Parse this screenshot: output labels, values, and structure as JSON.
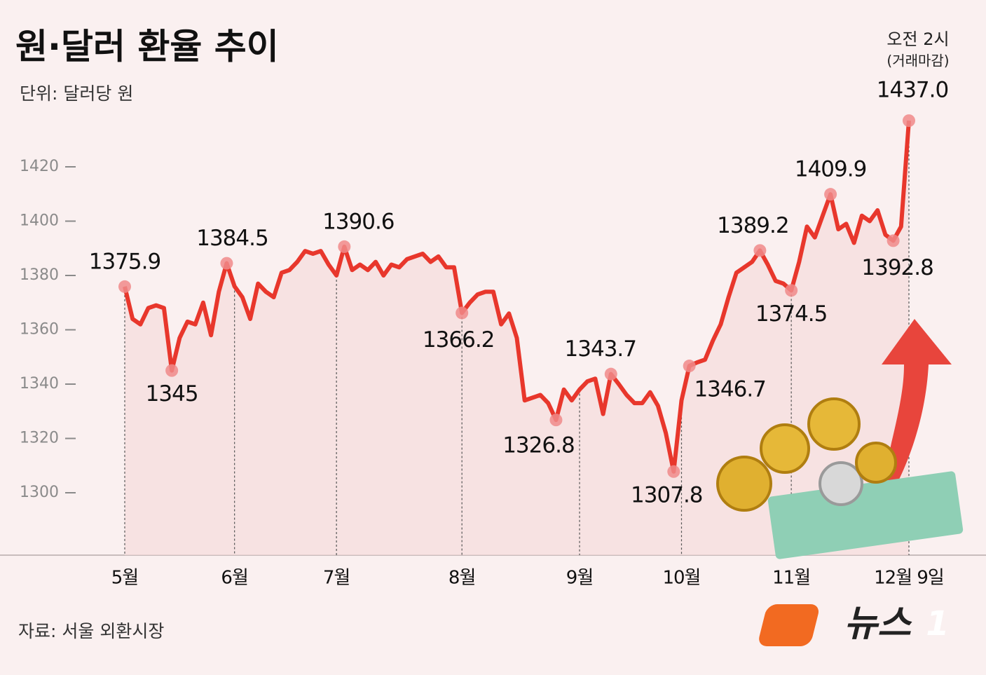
{
  "chart_data": {
    "type": "line",
    "title": "원·달러 환율 추이",
    "subtitle": "단위: 달러당 원",
    "source": "자료: 서울 외환시장",
    "logo": "뉴스",
    "logo_mark": "1",
    "annotations": [
      "오전 2시",
      "(거래마감)"
    ],
    "categories": [
      "5월",
      null,
      null,
      null,
      null,
      null,
      null,
      null,
      null,
      null,
      null,
      null,
      null,
      null,
      "6월",
      null,
      null,
      null,
      null,
      null,
      null,
      null,
      null,
      null,
      null,
      null,
      null,
      "7월",
      null,
      null,
      null,
      null,
      null,
      null,
      null,
      null,
      null,
      null,
      null,
      null,
      null,
      null,
      null,
      "8월",
      null,
      null,
      null,
      null,
      null,
      null,
      null,
      null,
      null,
      null,
      null,
      null,
      null,
      null,
      "9월",
      null,
      null,
      null,
      null,
      null,
      null,
      null,
      null,
      null,
      null,
      null,
      null,
      "10월",
      null,
      null,
      null,
      null,
      null,
      null,
      null,
      null,
      null,
      null,
      null,
      null,
      null,
      "11월",
      null,
      null,
      null,
      null,
      null,
      null,
      null,
      null,
      null,
      null,
      null,
      null,
      null,
      null,
      "12월 9일"
    ],
    "series": [
      {
        "color": "#e8372c",
        "values": [
          1375.9,
          1364,
          1362,
          1368,
          1369,
          1368,
          1345,
          1357,
          1363,
          1362,
          1370,
          1358,
          1374,
          1384.5,
          1376,
          1372,
          1364,
          1377,
          1374,
          1372,
          1381,
          1382,
          1385,
          1389,
          1388,
          1389,
          1384,
          1380,
          1390.6,
          1382,
          1384,
          1382,
          1385,
          1380,
          1384,
          1383,
          1386,
          1387,
          1388,
          1385,
          1387,
          1383,
          1383,
          1366.2,
          1370,
          1373,
          1374,
          1374,
          1362,
          1366,
          1357,
          1334,
          1335,
          1336,
          1333,
          1326.8,
          1338,
          1334,
          1338,
          1341,
          1342,
          1329,
          1343.7,
          1340,
          1336,
          1333,
          1333,
          1337,
          1332,
          1322,
          1307.8,
          1334,
          1346.7,
          1348,
          1349,
          1356,
          1362,
          1372,
          1381,
          1383,
          1385,
          1389.2,
          1384,
          1378,
          1377,
          1374.5,
          1385,
          1398,
          1394,
          1402,
          1409.9,
          1397,
          1399,
          1392,
          1402,
          1400,
          1404,
          1395,
          1392.8,
          1398,
          1437.0
        ],
        "value_labels": [
          "1375.9",
          null,
          null,
          null,
          null,
          null,
          "1345",
          null,
          null,
          null,
          null,
          null,
          null,
          "1384.5",
          null,
          null,
          null,
          null,
          null,
          null,
          null,
          null,
          null,
          null,
          null,
          null,
          null,
          null,
          "1390.6",
          null,
          null,
          null,
          null,
          null,
          null,
          null,
          null,
          null,
          null,
          null,
          null,
          null,
          null,
          "1366.2",
          null,
          null,
          null,
          null,
          null,
          null,
          null,
          null,
          null,
          null,
          null,
          "1326.8",
          null,
          null,
          null,
          null,
          null,
          null,
          "1343.7",
          null,
          null,
          null,
          null,
          null,
          null,
          null,
          "1307.8",
          null,
          "1346.7",
          null,
          null,
          null,
          null,
          null,
          null,
          null,
          null,
          "1389.2",
          null,
          null,
          null,
          "1374.5",
          null,
          null,
          null,
          null,
          "1409.9",
          null,
          null,
          null,
          null,
          null,
          null,
          null,
          "1392.8",
          null,
          "1437.0"
        ]
      }
    ],
    "ylim": [
      1280,
      1440
    ],
    "yticks": [
      1300,
      1320,
      1340,
      1360,
      1380,
      1400,
      1420
    ]
  }
}
